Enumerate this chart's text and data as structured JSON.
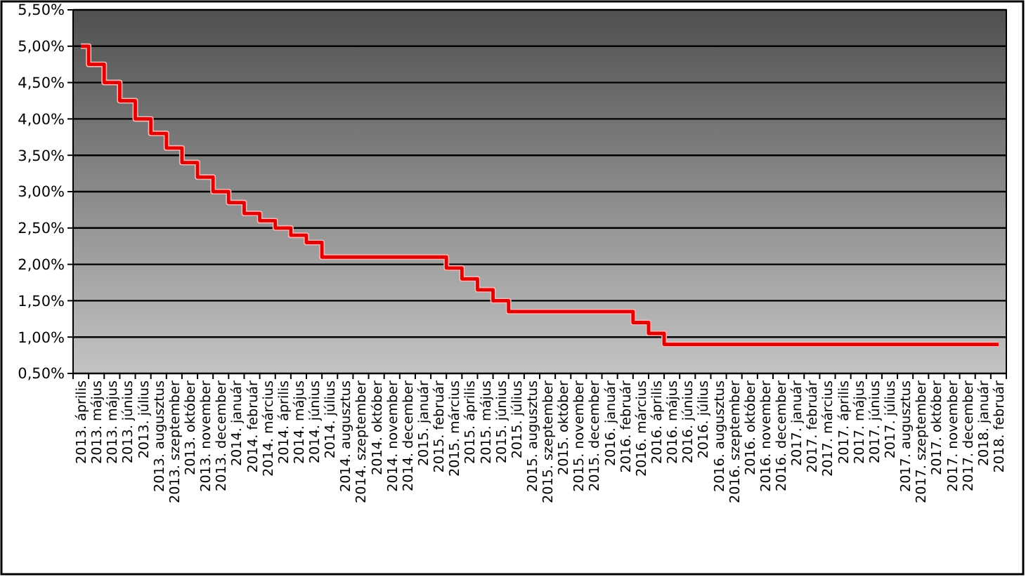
{
  "chart_data": {
    "type": "step",
    "categories": [
      "2013. április",
      "2013. május",
      "2013. május",
      "2013. június",
      "2013. július",
      "2013. augusztus",
      "2013. szeptember",
      "2013. október",
      "2013. november",
      "2013. december",
      "2014. január",
      "2014. február",
      "2014. március",
      "2014. április",
      "2014. május",
      "2014. június",
      "2014. július",
      "2014. augusztus",
      "2014. szeptember",
      "2014. október",
      "2014. november",
      "2014. december",
      "2015. január",
      "2015. február",
      "2015. március",
      "2015. április",
      "2015. május",
      "2015. június",
      "2015. július",
      "2015. augusztus",
      "2015. szeptember",
      "2015. október",
      "2015. november",
      "2015. december",
      "2016. január",
      "2016. február",
      "2016. március",
      "2016. április",
      "2016. május",
      "2016. június",
      "2016. július",
      "2016. augusztus",
      "2016. szeptember",
      "2016. október",
      "2016. november",
      "2016. december",
      "2017. január",
      "2017. február",
      "2017. március",
      "2017. április",
      "2017. május",
      "2017. június",
      "2017. július",
      "2017. augusztus",
      "2017. szeptember",
      "2017. október",
      "2017. november",
      "2017. december",
      "2018. január",
      "2018. február"
    ],
    "series": [
      {
        "color": "#e00000",
        "values": [
          5.0,
          4.75,
          4.5,
          4.25,
          4.0,
          3.8,
          3.6,
          3.4,
          3.2,
          3.0,
          2.85,
          2.7,
          2.6,
          2.5,
          2.4,
          2.3,
          2.1,
          2.1,
          2.1,
          2.1,
          2.1,
          2.1,
          2.1,
          2.1,
          1.95,
          1.8,
          1.65,
          1.5,
          1.35,
          1.35,
          1.35,
          1.35,
          1.35,
          1.35,
          1.35,
          1.35,
          1.2,
          1.05,
          0.9,
          0.9,
          0.9,
          0.9,
          0.9,
          0.9,
          0.9,
          0.9,
          0.9,
          0.9,
          0.9,
          0.9,
          0.9,
          0.9,
          0.9,
          0.9,
          0.9,
          0.9,
          0.9,
          0.9,
          0.9,
          0.9
        ]
      }
    ],
    "ylim": [
      0.5,
      5.5
    ],
    "yticks": [
      {
        "value": 0.5,
        "label": "0,50%"
      },
      {
        "value": 1.0,
        "label": "1,00%"
      },
      {
        "value": 1.5,
        "label": "1,50%"
      },
      {
        "value": 2.0,
        "label": "2,00%"
      },
      {
        "value": 2.5,
        "label": "2,50%"
      },
      {
        "value": 3.0,
        "label": "3,00%"
      },
      {
        "value": 3.5,
        "label": "3,50%"
      },
      {
        "value": 4.0,
        "label": "4,00%"
      },
      {
        "value": 4.5,
        "label": "4,50%"
      },
      {
        "value": 5.0,
        "label": "5,00%"
      },
      {
        "value": 5.5,
        "label": "5,50%"
      }
    ],
    "grid": true,
    "marker": "none",
    "line_style": "solid"
  }
}
